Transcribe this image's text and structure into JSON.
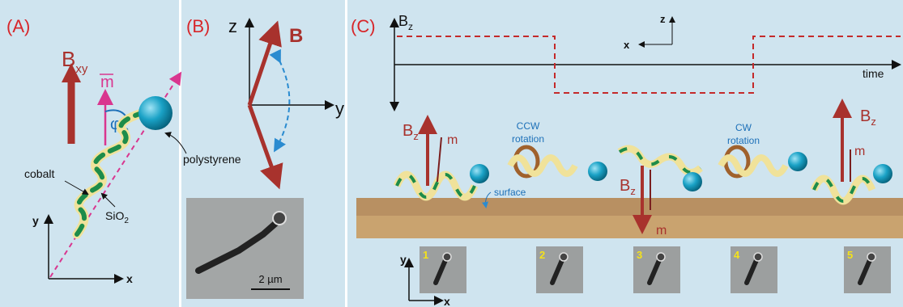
{
  "panel_a": {
    "label": "(A)",
    "field": "B",
    "field_sub": "xy",
    "moment": "m",
    "angle": "φ",
    "angle_sub": "m",
    "bead": "polystyrene",
    "metal": "cobalt",
    "oxide": "SiO",
    "oxide_sub": "2",
    "axis_y": "y",
    "axis_x": "x"
  },
  "panel_b": {
    "label": "(B)",
    "axis_z": "z",
    "field": "B",
    "axis_y": "y",
    "scale": "2 µm"
  },
  "panel_c": {
    "label": "(C)",
    "signal": "B",
    "signal_sub": "z",
    "axis_z": "z",
    "axis_x": "x",
    "time": "time",
    "states": [
      {
        "field": "B",
        "field_sub": "z",
        "moment": "m"
      },
      {
        "rotation": "CCW",
        "rotation_2": "rotation"
      },
      {
        "field": "B",
        "field_sub": "z",
        "moment": "m"
      },
      {
        "rotation": "CW",
        "rotation_2": "rotation"
      },
      {
        "field": "B",
        "field_sub": "z",
        "moment": "m"
      }
    ],
    "surface": "surface",
    "frames": [
      "1",
      "2",
      "3",
      "4",
      "5"
    ],
    "image_axis_y": "y",
    "image_axis_x": "x"
  }
}
